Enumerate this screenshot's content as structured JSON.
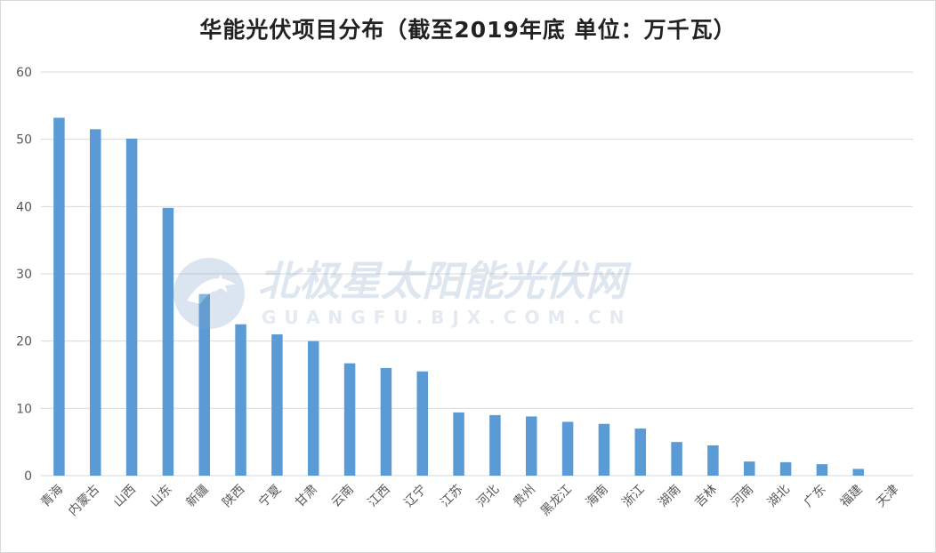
{
  "chart_data": {
    "type": "bar",
    "title": "华能光伏项目分布（截至2019年底 单位：万千瓦）",
    "categories": [
      "青海",
      "内蒙古",
      "山西",
      "山东",
      "新疆",
      "陕西",
      "宁夏",
      "甘肃",
      "云南",
      "江西",
      "辽宁",
      "江苏",
      "河北",
      "贵州",
      "黑龙江",
      "海南",
      "浙江",
      "湖南",
      "吉林",
      "河南",
      "湖北",
      "广东",
      "福建",
      "天津"
    ],
    "values": [
      53.2,
      51.5,
      50.1,
      39.8,
      27.0,
      22.5,
      21.0,
      20.0,
      16.7,
      16.0,
      15.5,
      9.4,
      9.0,
      8.8,
      8.0,
      7.7,
      7.0,
      5.0,
      4.5,
      2.1,
      2.0,
      1.7,
      1.0,
      0.0
    ],
    "yticks": [
      0,
      10,
      20,
      30,
      40,
      50,
      60
    ],
    "ylim": [
      0,
      60
    ],
    "grid": true,
    "bar_color": "#5b9bd5",
    "grid_color": "#d9d9d9"
  },
  "watermark": {
    "name": "北极星太阳能光伏网",
    "url": "GUANGFU.BJX.COM.CN"
  }
}
